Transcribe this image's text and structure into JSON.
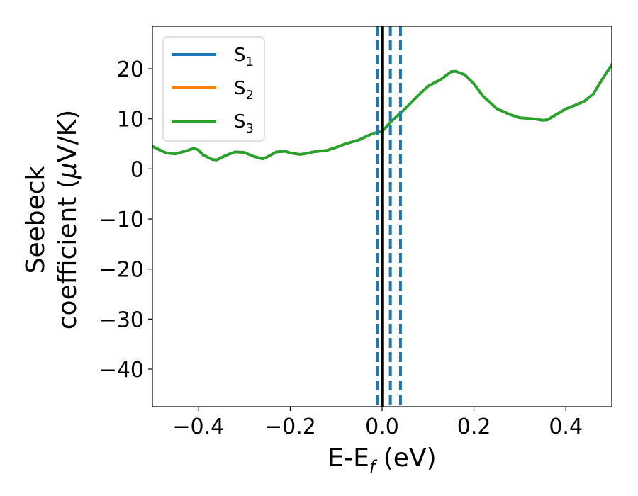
{
  "chart_data": {
    "type": "line",
    "xlabel": "E-E",
    "xlabel_sub": "f",
    "xlabel_unit": " (eV)",
    "ylabel_line1": "Seebeck",
    "ylabel_line2_a": "coefficient  (",
    "ylabel_mu": "μ",
    "ylabel_line2_b": "V/K)",
    "xlim": [
      -0.5,
      0.5
    ],
    "ylim": [
      -47.5,
      28.5
    ],
    "xticks": [
      -0.4,
      -0.2,
      0.0,
      0.2,
      0.4
    ],
    "xtick_labels": [
      "−0.4",
      "−0.2",
      "0.0",
      "0.2",
      "0.4"
    ],
    "yticks": [
      -40,
      -30,
      -20,
      -10,
      0,
      10,
      20
    ],
    "ytick_labels": [
      "−40",
      "−30",
      "−20",
      "−10",
      "0",
      "10",
      "20"
    ],
    "grid": false,
    "legend_position": "top-left",
    "legend": [
      {
        "base": "S",
        "sub": "1",
        "color": "#1f77b4"
      },
      {
        "base": "S",
        "sub": "2",
        "color": "#ff7f0e"
      },
      {
        "base": "S",
        "sub": "3",
        "color": "#2ca02c"
      }
    ],
    "series": [
      {
        "color": "#2ca02c",
        "x": [
          -0.5,
          -0.47,
          -0.45,
          -0.43,
          -0.41,
          -0.4,
          -0.39,
          -0.37,
          -0.36,
          -0.34,
          -0.32,
          -0.3,
          -0.28,
          -0.26,
          -0.25,
          -0.23,
          -0.21,
          -0.2,
          -0.18,
          -0.17,
          -0.15,
          -0.12,
          -0.1,
          -0.08,
          -0.05,
          -0.02,
          0.0,
          0.02,
          0.05,
          0.08,
          0.1,
          0.13,
          0.15,
          0.16,
          0.18,
          0.2,
          0.22,
          0.25,
          0.28,
          0.3,
          0.33,
          0.35,
          0.36,
          0.38,
          0.4,
          0.42,
          0.44,
          0.46,
          0.48,
          0.5
        ],
        "y": [
          4.5,
          3.2,
          3.0,
          3.5,
          4.1,
          3.8,
          2.8,
          1.9,
          1.8,
          2.7,
          3.4,
          3.3,
          2.5,
          2.0,
          2.4,
          3.4,
          3.5,
          3.2,
          2.9,
          3.0,
          3.4,
          3.7,
          4.3,
          5.0,
          5.8,
          7.1,
          7.5,
          9.5,
          12.0,
          14.8,
          16.5,
          18.0,
          19.4,
          19.5,
          18.8,
          17.0,
          14.5,
          12.0,
          10.8,
          10.2,
          10.0,
          9.7,
          9.8,
          10.9,
          12.0,
          12.7,
          13.5,
          15.0,
          18.0,
          20.8
        ]
      }
    ],
    "vlines": [
      {
        "x": 0.0,
        "style": "solid",
        "color": "#000000"
      },
      {
        "x": -0.01,
        "style": "dashed",
        "color": "#1f77b4"
      },
      {
        "x": 0.018,
        "style": "dashed",
        "color": "#1f77b4"
      },
      {
        "x": 0.04,
        "style": "dashed",
        "color": "#1f77b4"
      }
    ]
  }
}
